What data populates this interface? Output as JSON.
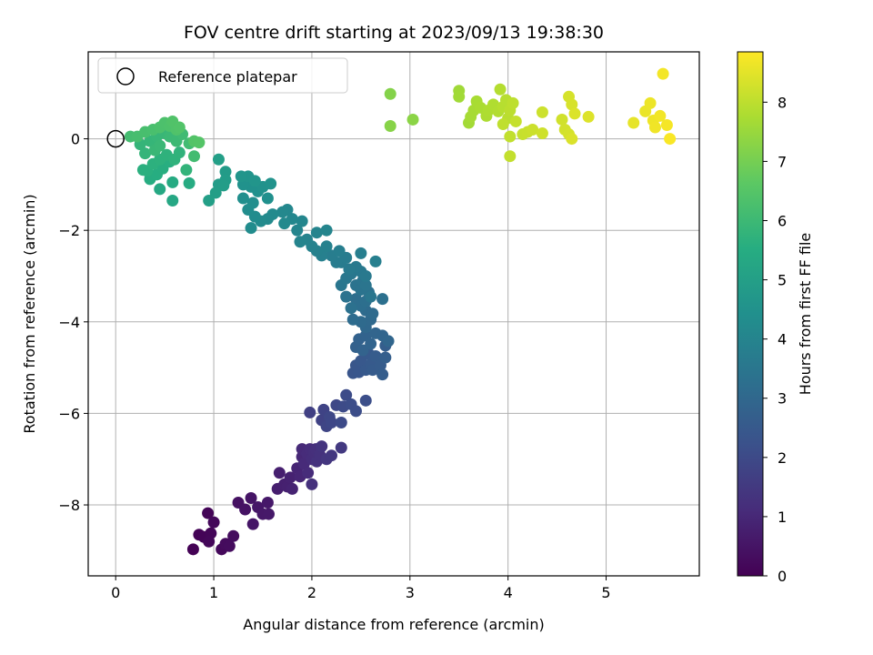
{
  "chart_data": {
    "type": "scatter",
    "title": "FOV centre drift starting at 2023/09/13 19:38:30",
    "xlabel": "Angular distance from reference (arcmin)",
    "ylabel": "Rotation from reference (arcmin)",
    "xlim": [
      -0.28,
      5.95
    ],
    "ylim": [
      -9.55,
      1.9
    ],
    "xticks": [
      "0",
      "1",
      "2",
      "3",
      "4",
      "5"
    ],
    "yticks": [
      "0",
      "−2",
      "−4",
      "−6",
      "−8"
    ],
    "grid": true,
    "legend": {
      "placement": "top-left",
      "entries": [
        "Reference platepar"
      ]
    },
    "reference_point": {
      "x": 0,
      "y": 0
    },
    "colorbar": {
      "label": "Hours from first FF file",
      "range": [
        0,
        8.85
      ],
      "ticks": [
        "0",
        "1",
        "2",
        "3",
        "4",
        "5",
        "6",
        "7",
        "8"
      ],
      "colormap": "viridis"
    },
    "points": [
      {
        "x": 0.79,
        "y": -8.97,
        "c": 0.02
      },
      {
        "x": 0.85,
        "y": -8.65,
        "c": 0.05
      },
      {
        "x": 0.9,
        "y": -8.7,
        "c": 0.08
      },
      {
        "x": 0.94,
        "y": -8.18,
        "c": 0.1
      },
      {
        "x": 0.97,
        "y": -8.62,
        "c": 0.12
      },
      {
        "x": 0.95,
        "y": -8.8,
        "c": 0.15
      },
      {
        "x": 1.0,
        "y": -8.38,
        "c": 0.18
      },
      {
        "x": 1.08,
        "y": -8.97,
        "c": 0.2
      },
      {
        "x": 1.12,
        "y": -8.85,
        "c": 0.25
      },
      {
        "x": 1.16,
        "y": -8.9,
        "c": 0.28
      },
      {
        "x": 1.2,
        "y": -8.68,
        "c": 0.3
      },
      {
        "x": 1.25,
        "y": -7.95,
        "c": 0.4
      },
      {
        "x": 1.32,
        "y": -8.1,
        "c": 0.45
      },
      {
        "x": 1.38,
        "y": -7.85,
        "c": 0.5
      },
      {
        "x": 1.4,
        "y": -8.42,
        "c": 0.52
      },
      {
        "x": 1.45,
        "y": -8.05,
        "c": 0.55
      },
      {
        "x": 1.5,
        "y": -8.2,
        "c": 0.58
      },
      {
        "x": 1.55,
        "y": -7.95,
        "c": 0.6
      },
      {
        "x": 1.56,
        "y": -8.2,
        "c": 0.62
      },
      {
        "x": 1.65,
        "y": -7.65,
        "c": 0.75
      },
      {
        "x": 1.67,
        "y": -7.3,
        "c": 0.78
      },
      {
        "x": 1.72,
        "y": -7.55,
        "c": 0.8
      },
      {
        "x": 1.75,
        "y": -7.6,
        "c": 0.82
      },
      {
        "x": 1.78,
        "y": -7.4,
        "c": 0.85
      },
      {
        "x": 1.8,
        "y": -7.65,
        "c": 0.88
      },
      {
        "x": 1.85,
        "y": -7.2,
        "c": 0.92
      },
      {
        "x": 1.88,
        "y": -7.38,
        "c": 0.95
      },
      {
        "x": 1.9,
        "y": -6.95,
        "c": 1.0
      },
      {
        "x": 1.9,
        "y": -6.78,
        "c": 1.05
      },
      {
        "x": 1.92,
        "y": -7.1,
        "c": 1.08
      },
      {
        "x": 1.95,
        "y": -6.88,
        "c": 1.1
      },
      {
        "x": 1.96,
        "y": -7.3,
        "c": 1.12
      },
      {
        "x": 1.98,
        "y": -6.78,
        "c": 1.15
      },
      {
        "x": 2.0,
        "y": -7.0,
        "c": 1.18
      },
      {
        "x": 2.02,
        "y": -6.85,
        "c": 1.2
      },
      {
        "x": 2.04,
        "y": -6.78,
        "c": 1.22
      },
      {
        "x": 2.0,
        "y": -7.55,
        "c": 1.25
      },
      {
        "x": 2.05,
        "y": -7.05,
        "c": 1.28
      },
      {
        "x": 2.08,
        "y": -6.9,
        "c": 1.3
      },
      {
        "x": 2.1,
        "y": -6.72,
        "c": 1.35
      },
      {
        "x": 2.15,
        "y": -7.0,
        "c": 1.4
      },
      {
        "x": 2.2,
        "y": -6.92,
        "c": 1.45
      },
      {
        "x": 2.3,
        "y": -6.75,
        "c": 1.5
      },
      {
        "x": 1.98,
        "y": -5.98,
        "c": 1.7
      },
      {
        "x": 2.1,
        "y": -6.15,
        "c": 1.75
      },
      {
        "x": 2.12,
        "y": -5.92,
        "c": 1.8
      },
      {
        "x": 2.15,
        "y": -6.28,
        "c": 1.85
      },
      {
        "x": 2.18,
        "y": -6.08,
        "c": 1.9
      },
      {
        "x": 2.2,
        "y": -6.2,
        "c": 1.92
      },
      {
        "x": 2.25,
        "y": -5.82,
        "c": 1.95
      },
      {
        "x": 2.3,
        "y": -6.2,
        "c": 2.0
      },
      {
        "x": 2.32,
        "y": -5.85,
        "c": 2.02
      },
      {
        "x": 2.35,
        "y": -5.6,
        "c": 2.05
      },
      {
        "x": 2.4,
        "y": -5.8,
        "c": 2.08
      },
      {
        "x": 2.45,
        "y": -5.95,
        "c": 2.1
      },
      {
        "x": 2.55,
        "y": -5.72,
        "c": 2.15
      },
      {
        "x": 2.42,
        "y": -5.12,
        "c": 2.35
      },
      {
        "x": 2.45,
        "y": -4.95,
        "c": 2.38
      },
      {
        "x": 2.48,
        "y": -5.1,
        "c": 2.4
      },
      {
        "x": 2.5,
        "y": -4.85,
        "c": 2.45
      },
      {
        "x": 2.55,
        "y": -5.05,
        "c": 2.48
      },
      {
        "x": 2.58,
        "y": -4.7,
        "c": 2.5
      },
      {
        "x": 2.6,
        "y": -4.92,
        "c": 2.52
      },
      {
        "x": 2.62,
        "y": -5.05,
        "c": 2.55
      },
      {
        "x": 2.65,
        "y": -4.75,
        "c": 2.58
      },
      {
        "x": 2.7,
        "y": -4.95,
        "c": 2.6
      },
      {
        "x": 2.72,
        "y": -5.15,
        "c": 2.62
      },
      {
        "x": 2.75,
        "y": -4.52,
        "c": 2.65
      },
      {
        "x": 2.75,
        "y": -4.78,
        "c": 2.68
      },
      {
        "x": 2.45,
        "y": -4.55,
        "c": 2.75
      },
      {
        "x": 2.48,
        "y": -4.38,
        "c": 2.8
      },
      {
        "x": 2.52,
        "y": -4.62,
        "c": 2.82
      },
      {
        "x": 2.55,
        "y": -4.3,
        "c": 2.85
      },
      {
        "x": 2.6,
        "y": -4.48,
        "c": 2.88
      },
      {
        "x": 2.65,
        "y": -4.25,
        "c": 2.9
      },
      {
        "x": 2.72,
        "y": -4.3,
        "c": 2.92
      },
      {
        "x": 2.78,
        "y": -4.42,
        "c": 2.95
      },
      {
        "x": 2.55,
        "y": -4.12,
        "c": 3.0
      },
      {
        "x": 2.6,
        "y": -3.95,
        "c": 3.05
      },
      {
        "x": 2.5,
        "y": -4.0,
        "c": 3.08
      },
      {
        "x": 2.55,
        "y": -3.75,
        "c": 3.1
      },
      {
        "x": 2.62,
        "y": -3.82,
        "c": 3.12
      },
      {
        "x": 2.42,
        "y": -3.95,
        "c": 3.15
      },
      {
        "x": 2.45,
        "y": -3.5,
        "c": 3.2
      },
      {
        "x": 2.5,
        "y": -3.65,
        "c": 3.22
      },
      {
        "x": 2.55,
        "y": -3.55,
        "c": 3.25
      },
      {
        "x": 2.58,
        "y": -3.35,
        "c": 3.28
      },
      {
        "x": 2.72,
        "y": -3.5,
        "c": 3.3
      },
      {
        "x": 2.4,
        "y": -3.7,
        "c": 3.32
      },
      {
        "x": 2.35,
        "y": -3.45,
        "c": 3.35
      },
      {
        "x": 2.45,
        "y": -3.2,
        "c": 3.38
      },
      {
        "x": 2.5,
        "y": -3.3,
        "c": 3.4
      },
      {
        "x": 2.52,
        "y": -3.1,
        "c": 3.42
      },
      {
        "x": 2.55,
        "y": -3.2,
        "c": 3.45
      },
      {
        "x": 2.6,
        "y": -3.45,
        "c": 3.48
      },
      {
        "x": 2.3,
        "y": -3.2,
        "c": 3.5
      },
      {
        "x": 2.35,
        "y": -3.05,
        "c": 3.52
      },
      {
        "x": 2.4,
        "y": -2.95,
        "c": 3.55
      },
      {
        "x": 2.5,
        "y": -2.9,
        "c": 3.58
      },
      {
        "x": 2.55,
        "y": -3.0,
        "c": 3.6
      },
      {
        "x": 2.45,
        "y": -2.8,
        "c": 3.62
      },
      {
        "x": 2.38,
        "y": -2.85,
        "c": 3.65
      },
      {
        "x": 2.3,
        "y": -2.7,
        "c": 3.68
      },
      {
        "x": 2.35,
        "y": -2.6,
        "c": 3.7
      },
      {
        "x": 2.25,
        "y": -2.7,
        "c": 3.72
      },
      {
        "x": 2.2,
        "y": -2.55,
        "c": 3.75
      },
      {
        "x": 2.28,
        "y": -2.45,
        "c": 3.78
      },
      {
        "x": 2.5,
        "y": -2.5,
        "c": 3.8
      },
      {
        "x": 2.65,
        "y": -2.68,
        "c": 3.82
      },
      {
        "x": 2.1,
        "y": -2.55,
        "c": 3.85
      },
      {
        "x": 2.15,
        "y": -2.35,
        "c": 3.88
      },
      {
        "x": 2.05,
        "y": -2.45,
        "c": 3.9
      },
      {
        "x": 2.0,
        "y": -2.35,
        "c": 3.92
      },
      {
        "x": 1.95,
        "y": -2.2,
        "c": 3.95
      },
      {
        "x": 1.88,
        "y": -2.25,
        "c": 3.98
      },
      {
        "x": 2.05,
        "y": -2.05,
        "c": 4.0
      },
      {
        "x": 2.15,
        "y": -2.0,
        "c": 4.02
      },
      {
        "x": 1.85,
        "y": -2.0,
        "c": 4.05
      },
      {
        "x": 1.9,
        "y": -1.8,
        "c": 4.08
      },
      {
        "x": 1.8,
        "y": -1.75,
        "c": 4.1
      },
      {
        "x": 1.75,
        "y": -1.55,
        "c": 4.12
      },
      {
        "x": 1.7,
        "y": -1.6,
        "c": 4.15
      },
      {
        "x": 1.72,
        "y": -1.85,
        "c": 4.18
      },
      {
        "x": 1.6,
        "y": -1.65,
        "c": 4.2
      },
      {
        "x": 1.55,
        "y": -1.75,
        "c": 4.22
      },
      {
        "x": 1.48,
        "y": -1.8,
        "c": 4.25
      },
      {
        "x": 1.42,
        "y": -1.7,
        "c": 4.28
      },
      {
        "x": 1.38,
        "y": -1.95,
        "c": 4.3
      },
      {
        "x": 1.35,
        "y": -1.55,
        "c": 4.32
      },
      {
        "x": 1.4,
        "y": -1.4,
        "c": 4.35
      },
      {
        "x": 1.3,
        "y": -1.3,
        "c": 4.4
      },
      {
        "x": 1.55,
        "y": -1.3,
        "c": 4.42
      },
      {
        "x": 1.45,
        "y": -1.15,
        "c": 4.45
      },
      {
        "x": 1.38,
        "y": -1.05,
        "c": 4.48
      },
      {
        "x": 1.3,
        "y": -1.0,
        "c": 4.5
      },
      {
        "x": 1.5,
        "y": -1.05,
        "c": 4.52
      },
      {
        "x": 1.58,
        "y": -0.98,
        "c": 4.55
      },
      {
        "x": 1.35,
        "y": -0.82,
        "c": 4.58
      },
      {
        "x": 1.28,
        "y": -0.82,
        "c": 4.6
      },
      {
        "x": 1.42,
        "y": -0.92,
        "c": 4.62
      },
      {
        "x": 1.12,
        "y": -0.72,
        "c": 4.85
      },
      {
        "x": 1.12,
        "y": -0.9,
        "c": 4.88
      },
      {
        "x": 1.05,
        "y": -1.0,
        "c": 4.9
      },
      {
        "x": 1.1,
        "y": -1.02,
        "c": 4.92
      },
      {
        "x": 1.02,
        "y": -1.18,
        "c": 4.95
      },
      {
        "x": 0.95,
        "y": -1.35,
        "c": 4.98
      },
      {
        "x": 1.05,
        "y": -0.45,
        "c": 5.0
      },
      {
        "x": 0.58,
        "y": -1.35,
        "c": 5.3
      },
      {
        "x": 0.45,
        "y": -1.1,
        "c": 5.35
      },
      {
        "x": 0.58,
        "y": -0.95,
        "c": 5.4
      },
      {
        "x": 0.75,
        "y": -0.97,
        "c": 5.45
      },
      {
        "x": 0.35,
        "y": -0.88,
        "c": 5.5
      },
      {
        "x": 0.42,
        "y": -0.78,
        "c": 5.52
      },
      {
        "x": 0.48,
        "y": -0.65,
        "c": 5.55
      },
      {
        "x": 0.55,
        "y": -0.5,
        "c": 5.58
      },
      {
        "x": 0.32,
        "y": -0.7,
        "c": 5.6
      },
      {
        "x": 0.28,
        "y": -0.68,
        "c": 5.62
      },
      {
        "x": 0.38,
        "y": -0.55,
        "c": 5.65
      },
      {
        "x": 0.45,
        "y": -0.45,
        "c": 5.68
      },
      {
        "x": 0.52,
        "y": -0.35,
        "c": 5.7
      },
      {
        "x": 0.6,
        "y": -0.45,
        "c": 5.72
      },
      {
        "x": 0.65,
        "y": -0.3,
        "c": 5.75
      },
      {
        "x": 0.72,
        "y": -0.68,
        "c": 5.78
      },
      {
        "x": 0.3,
        "y": -0.32,
        "c": 5.8
      },
      {
        "x": 0.25,
        "y": -0.12,
        "c": 5.82
      },
      {
        "x": 0.35,
        "y": -0.05,
        "c": 5.85
      },
      {
        "x": 0.42,
        "y": 0.05,
        "c": 5.88
      },
      {
        "x": 0.5,
        "y": 0.12,
        "c": 5.9
      },
      {
        "x": 0.4,
        "y": -0.25,
        "c": 5.92
      },
      {
        "x": 0.45,
        "y": -0.15,
        "c": 5.95
      },
      {
        "x": 0.55,
        "y": 0.05,
        "c": 5.98
      },
      {
        "x": 0.62,
        "y": -0.05,
        "c": 6.0
      },
      {
        "x": 0.68,
        "y": 0.1,
        "c": 6.05
      },
      {
        "x": 0.75,
        "y": -0.1,
        "c": 6.1
      },
      {
        "x": 0.8,
        "y": -0.38,
        "c": 6.12
      },
      {
        "x": 0.15,
        "y": 0.05,
        "c": 6.15
      },
      {
        "x": 0.22,
        "y": 0.05,
        "c": 6.2
      },
      {
        "x": 0.3,
        "y": 0.15,
        "c": 6.22
      },
      {
        "x": 0.38,
        "y": 0.2,
        "c": 6.25
      },
      {
        "x": 0.45,
        "y": 0.25,
        "c": 6.3
      },
      {
        "x": 0.5,
        "y": 0.35,
        "c": 6.32
      },
      {
        "x": 0.55,
        "y": 0.28,
        "c": 6.35
      },
      {
        "x": 0.62,
        "y": 0.2,
        "c": 6.38
      },
      {
        "x": 0.58,
        "y": 0.38,
        "c": 6.4
      },
      {
        "x": 0.65,
        "y": 0.25,
        "c": 6.42
      },
      {
        "x": 0.8,
        "y": -0.05,
        "c": 6.45
      },
      {
        "x": 0.85,
        "y": -0.08,
        "c": 6.48
      },
      {
        "x": 2.8,
        "y": 0.98,
        "c": 7.2
      },
      {
        "x": 2.8,
        "y": 0.28,
        "c": 7.25
      },
      {
        "x": 3.03,
        "y": 0.42,
        "c": 7.3
      },
      {
        "x": 3.5,
        "y": 1.05,
        "c": 7.6
      },
      {
        "x": 3.5,
        "y": 0.92,
        "c": 7.62
      },
      {
        "x": 3.6,
        "y": 0.35,
        "c": 7.65
      },
      {
        "x": 3.62,
        "y": 0.48,
        "c": 7.68
      },
      {
        "x": 3.65,
        "y": 0.62,
        "c": 7.7
      },
      {
        "x": 3.68,
        "y": 0.82,
        "c": 7.72
      },
      {
        "x": 3.72,
        "y": 0.68,
        "c": 7.75
      },
      {
        "x": 3.78,
        "y": 0.5,
        "c": 7.78
      },
      {
        "x": 3.8,
        "y": 0.62,
        "c": 7.8
      },
      {
        "x": 3.85,
        "y": 0.75,
        "c": 7.82
      },
      {
        "x": 3.9,
        "y": 0.6,
        "c": 7.85
      },
      {
        "x": 3.92,
        "y": 1.08,
        "c": 7.88
      },
      {
        "x": 3.95,
        "y": 0.7,
        "c": 7.9
      },
      {
        "x": 3.98,
        "y": 0.85,
        "c": 7.92
      },
      {
        "x": 4.0,
        "y": 0.45,
        "c": 7.95
      },
      {
        "x": 4.02,
        "y": 0.62,
        "c": 7.98
      },
      {
        "x": 4.05,
        "y": 0.78,
        "c": 8.0
      },
      {
        "x": 3.95,
        "y": 0.32,
        "c": 8.02
      },
      {
        "x": 4.02,
        "y": 0.05,
        "c": 8.05
      },
      {
        "x": 4.02,
        "y": -0.38,
        "c": 8.08
      },
      {
        "x": 4.08,
        "y": 0.38,
        "c": 8.1
      },
      {
        "x": 4.15,
        "y": 0.1,
        "c": 8.12
      },
      {
        "x": 4.2,
        "y": 0.15,
        "c": 8.15
      },
      {
        "x": 4.25,
        "y": 0.2,
        "c": 8.18
      },
      {
        "x": 4.35,
        "y": 0.58,
        "c": 8.2
      },
      {
        "x": 4.35,
        "y": 0.12,
        "c": 8.22
      },
      {
        "x": 4.55,
        "y": 0.42,
        "c": 8.25
      },
      {
        "x": 4.58,
        "y": 0.2,
        "c": 8.28
      },
      {
        "x": 4.62,
        "y": 0.1,
        "c": 8.3
      },
      {
        "x": 4.62,
        "y": 0.92,
        "c": 8.32
      },
      {
        "x": 4.65,
        "y": 0.75,
        "c": 8.35
      },
      {
        "x": 4.65,
        "y": 0.0,
        "c": 8.38
      },
      {
        "x": 4.68,
        "y": 0.55,
        "c": 8.4
      },
      {
        "x": 4.82,
        "y": 0.48,
        "c": 8.42
      },
      {
        "x": 5.28,
        "y": 0.35,
        "c": 8.55
      },
      {
        "x": 5.4,
        "y": 0.6,
        "c": 8.6
      },
      {
        "x": 5.45,
        "y": 0.78,
        "c": 8.62
      },
      {
        "x": 5.48,
        "y": 0.4,
        "c": 8.65
      },
      {
        "x": 5.5,
        "y": 0.25,
        "c": 8.68
      },
      {
        "x": 5.55,
        "y": 0.5,
        "c": 8.7
      },
      {
        "x": 5.58,
        "y": 1.42,
        "c": 8.72
      },
      {
        "x": 5.62,
        "y": 0.3,
        "c": 8.75
      },
      {
        "x": 5.65,
        "y": 0.0,
        "c": 8.8
      }
    ]
  }
}
